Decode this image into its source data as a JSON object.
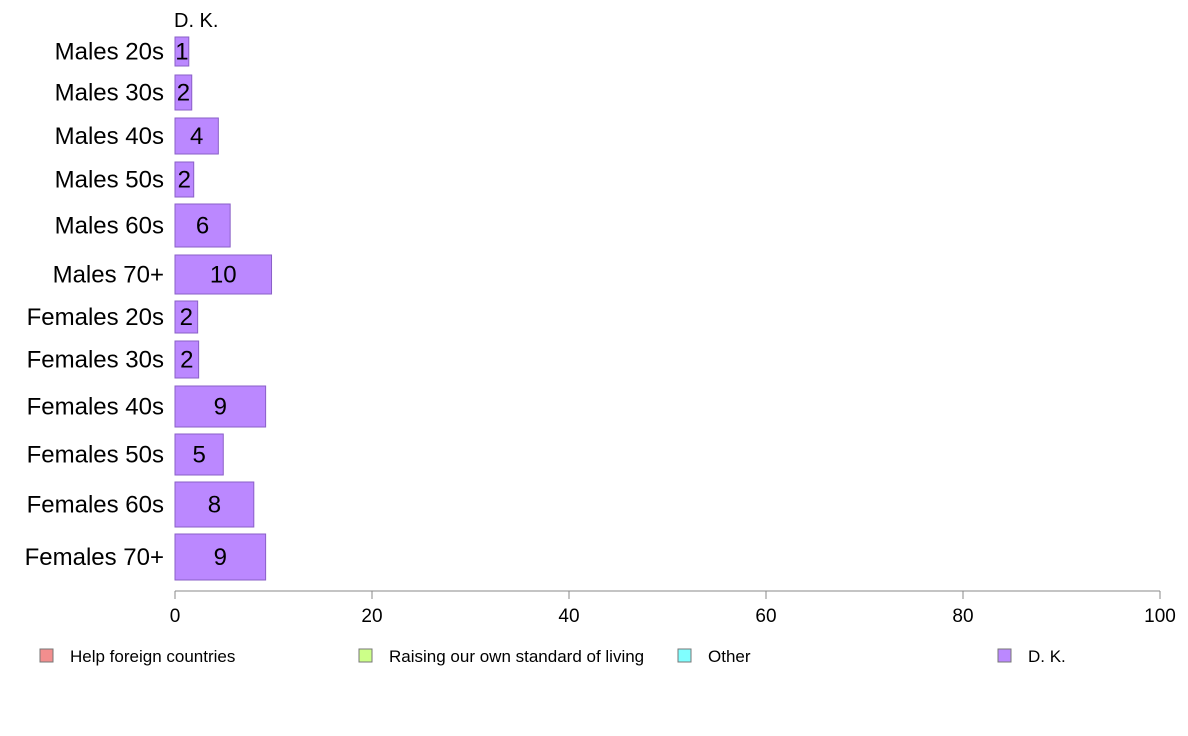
{
  "chart_data": {
    "type": "bar",
    "orientation": "horizontal",
    "stacked": true,
    "header_label": "D. K.",
    "categories": [
      "Males 20s",
      "Males 30s",
      "Males 40s",
      "Males 50s",
      "Males 60s",
      "Males 70+",
      "Females 20s",
      "Females 30s",
      "Females 40s",
      "Females 50s",
      "Females 60s",
      "Females 70+"
    ],
    "series": [
      {
        "name": "Help foreign countries",
        "color": "#f28e8e",
        "values": [
          0,
          0,
          0,
          0,
          0,
          0,
          0,
          0,
          0,
          0,
          0,
          0
        ]
      },
      {
        "name": "Raising our own standard of living",
        "color": "#ccff88",
        "values": [
          0,
          0,
          0,
          0,
          0,
          0,
          0,
          0,
          0,
          0,
          0,
          0
        ]
      },
      {
        "name": "Other",
        "color": "#80ffff",
        "values": [
          0,
          0,
          0,
          0,
          0,
          0,
          0,
          0,
          0,
          0,
          0,
          0
        ]
      },
      {
        "name": "D. K.",
        "color": "#bb88ff",
        "values": [
          1.4,
          1.7,
          4.4,
          1.9,
          5.6,
          9.8,
          2.3,
          2.4,
          9.2,
          4.9,
          8.0,
          9.2
        ]
      }
    ],
    "data_labels": [
      "1",
      "2",
      "4",
      "2",
      "6",
      "10",
      "2",
      "2",
      "9",
      "5",
      "8",
      "9"
    ],
    "xlim": [
      0,
      100
    ],
    "xticks": [
      "0",
      "20",
      "40",
      "60",
      "80",
      "100"
    ],
    "xlabel": "",
    "ylabel": "",
    "grid": false,
    "legend_position": "bottom"
  }
}
